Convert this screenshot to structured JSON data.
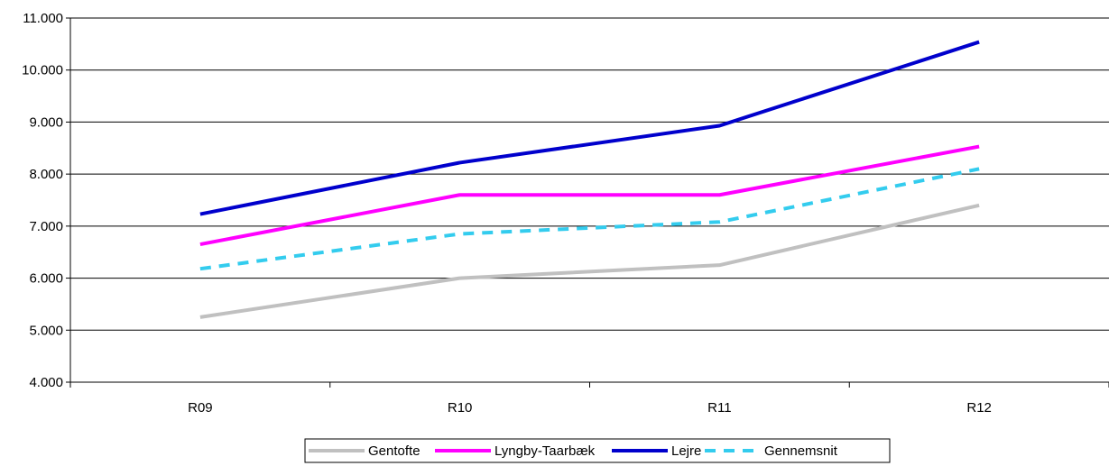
{
  "chart_data": {
    "type": "line",
    "categories": [
      "R09",
      "R10",
      "R11",
      "R12"
    ],
    "y_ticks": [
      "4.000",
      "5.000",
      "6.000",
      "7.000",
      "8.000",
      "9.000",
      "10.000",
      "11.000"
    ],
    "ylim": [
      4000,
      11000
    ],
    "grid": true,
    "legend_position": "bottom",
    "series": [
      {
        "name": "Gentofte",
        "values": [
          5250,
          6000,
          6250,
          7400
        ],
        "color": "#c0c0c0",
        "style": "solid"
      },
      {
        "name": "Lyngby-Taarbæk",
        "values": [
          6650,
          7600,
          7600,
          8530
        ],
        "color": "#ff00ff",
        "style": "solid"
      },
      {
        "name": "Lejre",
        "values": [
          7230,
          8220,
          8930,
          10540
        ],
        "color": "#0000cc",
        "style": "solid"
      },
      {
        "name": "Gennemsnit",
        "values": [
          6180,
          6850,
          7080,
          8100
        ],
        "color": "#33ccee",
        "style": "dashed"
      }
    ]
  }
}
